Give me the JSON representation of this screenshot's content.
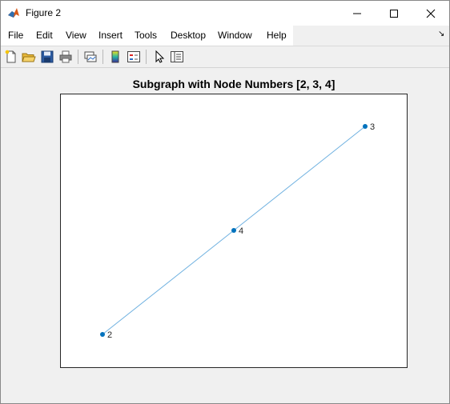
{
  "window": {
    "title": "Figure 2",
    "controls": {
      "minimize": "—",
      "maximize": "☐",
      "close": "✕"
    }
  },
  "menubar": {
    "items": [
      "File",
      "Edit",
      "View",
      "Insert",
      "Tools",
      "Desktop",
      "Window",
      "Help"
    ],
    "dock_arrow": "↘"
  },
  "toolbar": {
    "icons": [
      "new-figure-icon",
      "open-file-icon",
      "save-icon",
      "print-icon",
      "link-plot-icon",
      "colorbar-icon",
      "legend-icon",
      "pointer-icon",
      "property-inspector-icon"
    ]
  },
  "chart_data": {
    "type": "graph",
    "title": "Subgraph with Node Numbers [2, 3, 4]",
    "nodes": [
      {
        "label": "2",
        "x": 0,
        "y": 0
      },
      {
        "label": "4",
        "x": 0.5,
        "y": 0.5
      },
      {
        "label": "3",
        "x": 1,
        "y": 1
      }
    ],
    "edges": [
      [
        "2",
        "4"
      ],
      [
        "4",
        "3"
      ]
    ],
    "colors": {
      "node": "#0072bd",
      "edge": "#6fb1e0"
    },
    "grid": false
  }
}
